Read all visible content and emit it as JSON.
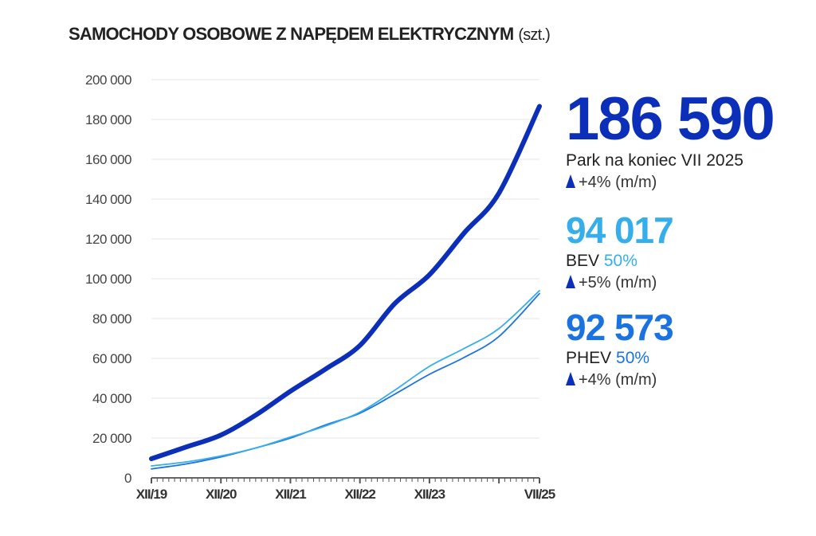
{
  "title": "SAMOCHODY OSOBOWE Z NAPĘDEM ELEKTRYCZNYM",
  "title_unit": "(szt.)",
  "summary": {
    "total": {
      "value": "186 590",
      "label": "Park na koniec VII 2025",
      "change": "+4% (m/m)",
      "color": "#0b2fb8"
    },
    "bev": {
      "value": "94 017",
      "label": "BEV",
      "share": "50%",
      "change": "+5% (m/m)",
      "color": "#35aeea"
    },
    "phev": {
      "value": "92 573",
      "label": "PHEV",
      "share": "50%",
      "change": "+4% (m/m)",
      "color": "#1a73e0"
    }
  },
  "chart_data": {
    "type": "line",
    "title": "SAMOCHODY OSOBOWE Z NAPĘDEM ELEKTRYCZNYM (szt.)",
    "xlabel": "",
    "ylabel": "",
    "ylim": [
      0,
      200000
    ],
    "yticks": [
      0,
      20000,
      40000,
      60000,
      80000,
      100000,
      120000,
      140000,
      160000,
      180000,
      200000
    ],
    "ytick_labels": [
      "0",
      "20 000",
      "40 000",
      "60 000",
      "80 000",
      "100 000",
      "120 000",
      "140 000",
      "160 000",
      "180 000",
      "200 000"
    ],
    "xlim": [
      "2019-12",
      "2025-07"
    ],
    "xticks": [
      "2019-12",
      "2020-12",
      "2021-12",
      "2022-12",
      "2023-12",
      "2025-07"
    ],
    "xtick_labels": [
      "XII/19",
      "XII/20",
      "XII/21",
      "XII/22",
      "XII/23",
      "VII/25"
    ],
    "grid": true,
    "x": [
      "2019-12",
      "2020-06",
      "2020-12",
      "2021-06",
      "2021-12",
      "2022-06",
      "2022-12",
      "2023-06",
      "2023-12",
      "2024-06",
      "2024-12",
      "2025-07"
    ],
    "series": [
      {
        "name": "Park",
        "color": "#0b2fb8",
        "values": [
          9600,
          15500,
          21500,
          31500,
          43500,
          54500,
          66500,
          87500,
          102000,
          123000,
          143000,
          186590
        ]
      },
      {
        "name": "BEV",
        "color": "#35aeea",
        "values": [
          6000,
          8000,
          11000,
          15000,
          20500,
          26000,
          33000,
          44000,
          56000,
          65000,
          75000,
          94017
        ]
      },
      {
        "name": "PHEV",
        "color": "#1a73e0",
        "values": [
          4500,
          7000,
          10500,
          15000,
          20000,
          26500,
          32500,
          42000,
          52000,
          60500,
          71000,
          92573
        ]
      }
    ]
  }
}
